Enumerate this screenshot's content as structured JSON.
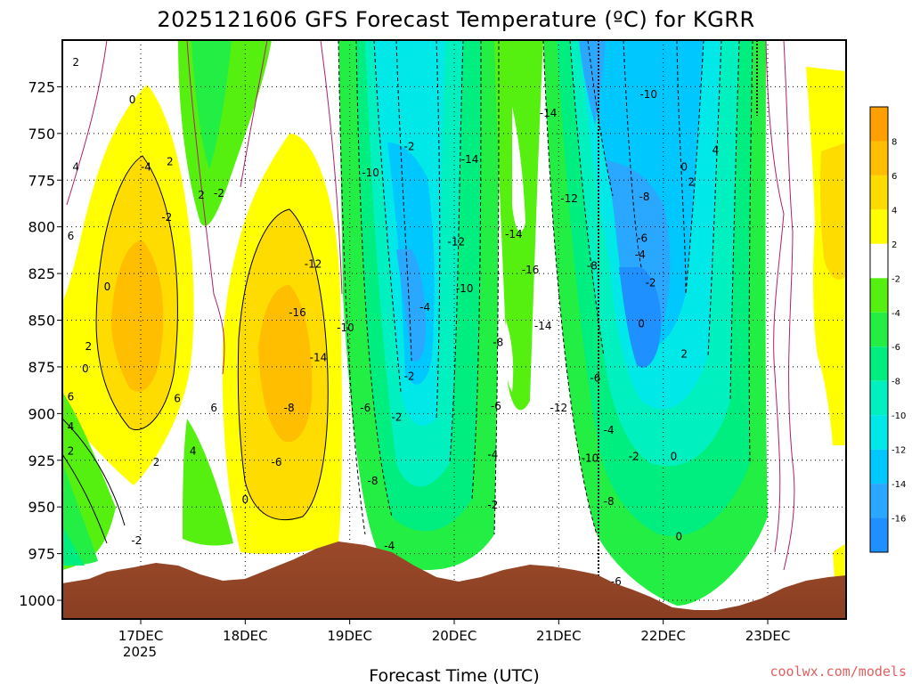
{
  "title": "2025121606 GFS Forecast Temperature (ºC) for KGRR",
  "xlabel": "Forecast Time (UTC)",
  "credit": "coolwx.com/models",
  "chart_data": {
    "type": "heatmap",
    "title": "2025121606 GFS Forecast Temperature (ºC) for KGRR",
    "xlabel": "Forecast Time (UTC)",
    "ylabel": "",
    "x_ticks": [
      "17DEC",
      "18DEC",
      "19DEC",
      "20DEC",
      "21DEC",
      "22DEC",
      "23DEC"
    ],
    "x_sublabel": "2025",
    "y_ticks": [
      725,
      750,
      775,
      800,
      825,
      850,
      875,
      900,
      925,
      950,
      975,
      1000
    ],
    "ylim": [
      1010,
      700
    ],
    "xlim_days": [
      16.25,
      23.75
    ],
    "colorbar": {
      "levels": [
        -18,
        -16,
        -14,
        -12,
        -10,
        -8,
        -6,
        -4,
        -2,
        2,
        4,
        6,
        8,
        10
      ],
      "tick_labels": [
        "-16",
        "-14",
        "-12",
        "-10",
        "-8",
        "-6",
        "-4",
        "-2",
        "2",
        "4",
        "6",
        "8"
      ],
      "colors": [
        "#1e90ff",
        "#2aa8ff",
        "#00c8ff",
        "#00e8e8",
        "#00f0c0",
        "#00ee80",
        "#22ee44",
        "#55f010",
        "#ffffff",
        "#ffff00",
        "#ffdc00",
        "#ffbe00",
        "#ffa000"
      ]
    },
    "contour_labels": [
      {
        "text": "2",
        "day": 16.38,
        "p": 712
      },
      {
        "text": "4",
        "day": 16.38,
        "p": 768
      },
      {
        "text": "6",
        "day": 16.33,
        "p": 805
      },
      {
        "text": "6",
        "day": 16.33,
        "p": 891
      },
      {
        "text": "4",
        "day": 16.33,
        "p": 907
      },
      {
        "text": "2",
        "day": 16.33,
        "p": 920
      },
      {
        "text": "0",
        "day": 16.92,
        "p": 732
      },
      {
        "text": "-4",
        "day": 17.05,
        "p": 768
      },
      {
        "text": "-2",
        "day": 17.25,
        "p": 795
      },
      {
        "text": "0",
        "day": 16.68,
        "p": 832
      },
      {
        "text": "2",
        "day": 16.5,
        "p": 864
      },
      {
        "text": "0",
        "day": 16.47,
        "p": 876
      },
      {
        "text": "2",
        "day": 17.28,
        "p": 765
      },
      {
        "text": "2",
        "day": 17.58,
        "p": 783
      },
      {
        "text": "-2",
        "day": 17.75,
        "p": 782
      },
      {
        "text": "6",
        "day": 17.35,
        "p": 892
      },
      {
        "text": "4",
        "day": 17.5,
        "p": 920
      },
      {
        "text": "6",
        "day": 17.7,
        "p": 897
      },
      {
        "text": "2",
        "day": 17.15,
        "p": 926
      },
      {
        "text": "-2",
        "day": 16.96,
        "p": 968
      },
      {
        "text": "0",
        "day": 18.0,
        "p": 946
      },
      {
        "text": "-6",
        "day": 18.3,
        "p": 926
      },
      {
        "text": "-16",
        "day": 18.5,
        "p": 846
      },
      {
        "text": "-12",
        "day": 18.65,
        "p": 820
      },
      {
        "text": "-10",
        "day": 18.96,
        "p": 854
      },
      {
        "text": "-14",
        "day": 18.7,
        "p": 870
      },
      {
        "text": "-8",
        "day": 18.42,
        "p": 897
      },
      {
        "text": "-10",
        "day": 19.2,
        "p": 771
      },
      {
        "text": "-6",
        "day": 19.15,
        "p": 897
      },
      {
        "text": "-8",
        "day": 19.22,
        "p": 936
      },
      {
        "text": "-4",
        "day": 19.38,
        "p": 971
      },
      {
        "text": "-2",
        "day": 19.57,
        "p": 757
      },
      {
        "text": "-4",
        "day": 19.72,
        "p": 843
      },
      {
        "text": "-2",
        "day": 19.57,
        "p": 880
      },
      {
        "text": "-2",
        "day": 19.45,
        "p": 902
      },
      {
        "text": "-14",
        "day": 20.15,
        "p": 764
      },
      {
        "text": "-12",
        "day": 20.02,
        "p": 808
      },
      {
        "text": "-10",
        "day": 20.1,
        "p": 833
      },
      {
        "text": "-8",
        "day": 20.42,
        "p": 862
      },
      {
        "text": "-6",
        "day": 20.4,
        "p": 896
      },
      {
        "text": "-4",
        "day": 20.37,
        "p": 922
      },
      {
        "text": "-2",
        "day": 20.37,
        "p": 949
      },
      {
        "text": "-14",
        "day": 20.57,
        "p": 804
      },
      {
        "text": "-16",
        "day": 20.73,
        "p": 823
      },
      {
        "text": "-14",
        "day": 20.85,
        "p": 853
      },
      {
        "text": "-14",
        "day": 20.9,
        "p": 739
      },
      {
        "text": "-12",
        "day": 21.1,
        "p": 785
      },
      {
        "text": "-12",
        "day": 21.0,
        "p": 897
      },
      {
        "text": "-10",
        "day": 21.3,
        "p": 924
      },
      {
        "text": "-8",
        "day": 21.32,
        "p": 821
      },
      {
        "text": "-6",
        "day": 21.35,
        "p": 881
      },
      {
        "text": "-4",
        "day": 21.48,
        "p": 909
      },
      {
        "text": "-8",
        "day": 21.48,
        "p": 947
      },
      {
        "text": "-6",
        "day": 21.55,
        "p": 990
      },
      {
        "text": "-10",
        "day": 21.86,
        "p": 729
      },
      {
        "text": "-8",
        "day": 21.82,
        "p": 784
      },
      {
        "text": "-6",
        "day": 21.8,
        "p": 806
      },
      {
        "text": "-4",
        "day": 21.78,
        "p": 815
      },
      {
        "text": "-2",
        "day": 21.88,
        "p": 830
      },
      {
        "text": "0",
        "day": 22.2,
        "p": 768
      },
      {
        "text": "2",
        "day": 22.27,
        "p": 776
      },
      {
        "text": "4",
        "day": 22.5,
        "p": 759
      },
      {
        "text": "0",
        "day": 21.79,
        "p": 852
      },
      {
        "text": "2",
        "day": 22.2,
        "p": 868
      },
      {
        "text": "-2",
        "day": 21.72,
        "p": 923
      },
      {
        "text": "0",
        "day": 22.1,
        "p": 923
      },
      {
        "text": "0",
        "day": 22.15,
        "p": 966
      }
    ]
  }
}
